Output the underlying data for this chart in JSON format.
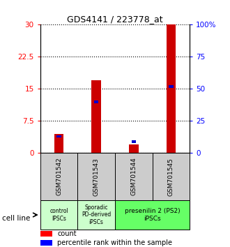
{
  "title": "GDS4141 / 223778_at",
  "samples": [
    "GSM701542",
    "GSM701543",
    "GSM701544",
    "GSM701545"
  ],
  "counts": [
    4.5,
    17.0,
    2.0,
    30.0
  ],
  "percentiles_scaled": [
    3.9,
    12.0,
    2.7,
    15.6
  ],
  "left_ylim": [
    0,
    30
  ],
  "right_ylim": [
    0,
    100
  ],
  "left_yticks": [
    0,
    7.5,
    15,
    22.5,
    30
  ],
  "right_yticks": [
    0,
    25,
    50,
    75,
    100
  ],
  "left_ytick_labels": [
    "0",
    "7.5",
    "15",
    "22.5",
    "30"
  ],
  "right_ytick_labels": [
    "0",
    "25",
    "50",
    "75",
    "100%"
  ],
  "bar_color": "#cc0000",
  "percentile_color": "#0000cc",
  "bar_width": 0.25,
  "sample_box_color": "#cccccc",
  "group0_color": "#ccffcc",
  "group1_color": "#ccffcc",
  "group2_color": "#66ff66",
  "cell_line_label": "cell line",
  "legend_count_label": "count",
  "legend_percentile_label": "percentile rank within the sample"
}
